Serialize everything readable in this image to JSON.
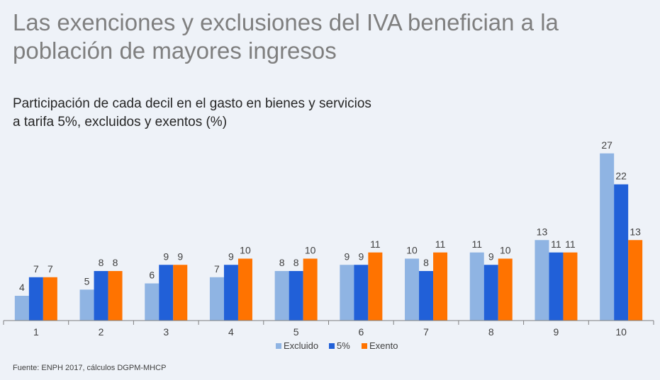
{
  "title": "Las exenciones y exclusiones del IVA benefician a la población de mayores ingresos",
  "subtitle": "Participación de cada decil en el gasto en bienes y servicios a tarifa 5%, excluidos y exentos (%)",
  "source": "Fuente: ENPH 2017, cálculos DGPM-MHCP",
  "chart_data": {
    "type": "bar",
    "categories": [
      "1",
      "2",
      "3",
      "4",
      "5",
      "6",
      "7",
      "8",
      "9",
      "10"
    ],
    "series": [
      {
        "name": "Excluido",
        "color": "#8fb4e3",
        "values": [
          4,
          5,
          6,
          7,
          8,
          9,
          10,
          11,
          13,
          27
        ]
      },
      {
        "name": "5%",
        "color": "#2160d8",
        "values": [
          7,
          8,
          9,
          9,
          8,
          9,
          8,
          9,
          11,
          22
        ]
      },
      {
        "name": "Exento",
        "color": "#ff7300",
        "values": [
          7,
          8,
          9,
          10,
          10,
          11,
          11,
          10,
          11,
          13
        ]
      }
    ],
    "xlabel": "",
    "ylabel": "",
    "ylim": [
      0,
      28
    ],
    "grid": false,
    "legend": "bottom"
  }
}
